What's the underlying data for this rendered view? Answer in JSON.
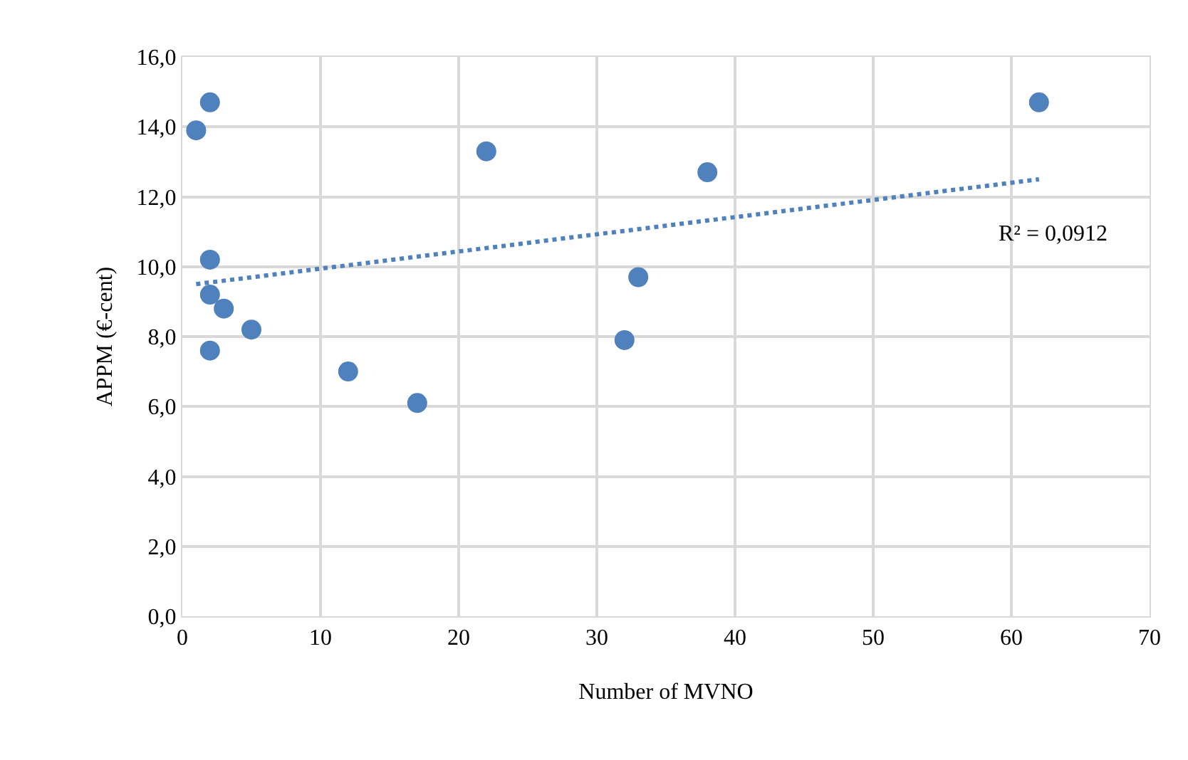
{
  "chart_data": {
    "type": "scatter",
    "xlabel": "Number of MVNO",
    "ylabel": "APPM (€-cent)",
    "xlim": [
      0,
      70
    ],
    "xticks": [
      0,
      10,
      20,
      30,
      40,
      50,
      60,
      70
    ],
    "ylim": [
      0,
      16
    ],
    "yticks": [
      {
        "value": 0,
        "label": "0,0"
      },
      {
        "value": 2,
        "label": "2,0"
      },
      {
        "value": 4,
        "label": "4,0"
      },
      {
        "value": 6,
        "label": "6,0"
      },
      {
        "value": 8,
        "label": "8,0"
      },
      {
        "value": 10,
        "label": "10,0"
      },
      {
        "value": 12,
        "label": "12,0"
      },
      {
        "value": 14,
        "label": "14,0"
      },
      {
        "value": 16,
        "label": "16,0"
      }
    ],
    "grid": true,
    "series": [
      {
        "color": "#4f81bd",
        "marker": "circle",
        "x": [
          1,
          2,
          2,
          2,
          3,
          2,
          5,
          12,
          17,
          22,
          32,
          33,
          38,
          62
        ],
        "values": [
          13.9,
          14.7,
          10.2,
          9.2,
          8.8,
          7.6,
          8.2,
          7.0,
          6.1,
          13.3,
          7.9,
          9.7,
          12.7,
          14.7
        ]
      },
      {
        "type": "line",
        "color": "#4f81bd",
        "marker": "none",
        "line_style": "dotted",
        "x": [
          1,
          62
        ],
        "values": [
          9.5,
          12.5
        ]
      }
    ],
    "annotations": [
      "R² = 0,0912"
    ]
  }
}
